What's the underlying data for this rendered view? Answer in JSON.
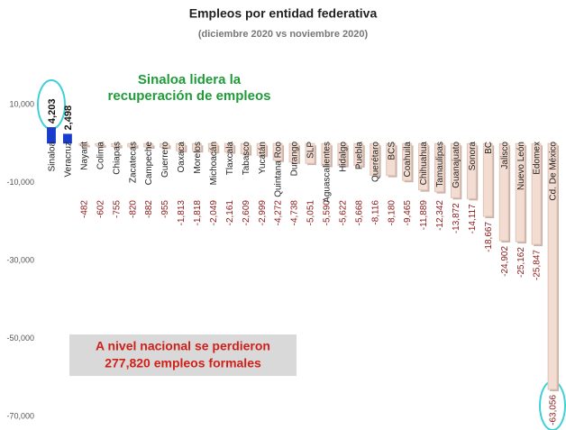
{
  "chart_data": {
    "type": "bar",
    "title": "Empleos por entidad federativa",
    "subtitle": "(diciembre 2020 vs noviembre 2020)",
    "annotations": [
      [
        "Sinaloa lidera la",
        "recuperación de empleos"
      ],
      [
        "A nivel nacional se perdieron",
        "277,820 empleos formales"
      ]
    ],
    "categories": [
      "Sinaloa",
      "Veracruz",
      "Nayarit",
      "Colima",
      "Chiapas",
      "Zacatecas",
      "Campeche",
      "Guerrero",
      "Oaxaca",
      "Morelos",
      "Michoacán",
      "Tlaxcala",
      "Tabasco",
      "Yucatán",
      "Quintana Roo",
      "Durango",
      "SLP",
      "Aguascalientes",
      "Hidalgo",
      "Puebla",
      "Querétaro",
      "BCS",
      "Coahuila",
      "Chihuahua",
      "Tamaulipas",
      "Guanajuato",
      "Sonora",
      "BC",
      "Jalisco",
      "Nuevo León",
      "Edomex",
      "Cd. De México"
    ],
    "values": [
      4203,
      2498,
      -482,
      -602,
      -755,
      -820,
      -882,
      -955,
      -1813,
      -1818,
      -2049,
      -2161,
      -2609,
      -2999,
      -4272,
      -4738,
      -5051,
      -5590,
      -5622,
      -5668,
      -8116,
      -8180,
      -9465,
      -11889,
      -12342,
      -13872,
      -14117,
      -18667,
      -24902,
      -25162,
      -25847,
      -63056
    ],
    "value_labels": [
      "4,203",
      "2,498",
      "-482",
      "-602",
      "-755",
      "-820",
      "-882",
      "-955",
      "-1,813",
      "-1,818",
      "-2,049",
      "-2,161",
      "-2,609",
      "-2,999",
      "-4,272",
      "-4,738",
      "-5,051",
      "-5,590",
      "-5,622",
      "-5,668",
      "-8,116",
      "-8,180",
      "-9,465",
      "-11,889",
      "-12,342",
      "-13,872",
      "-14,117",
      "-18,667",
      "-24,902",
      "-25,162",
      "-25,847",
      "-63,056"
    ],
    "positive_color": "#1a3ccc",
    "negative_color": "#f3ddd2",
    "label_negative_color": "#8b1a1a",
    "ylim": [
      -70000,
      10000
    ],
    "yticks": [
      {
        "value": 10000,
        "label": "10,000"
      },
      {
        "value": -10000,
        "label": "-10,000"
      },
      {
        "value": -30000,
        "label": "-30,000"
      },
      {
        "value": -50000,
        "label": "-50,000"
      },
      {
        "value": -70000,
        "label": "-70,000"
      }
    ]
  }
}
